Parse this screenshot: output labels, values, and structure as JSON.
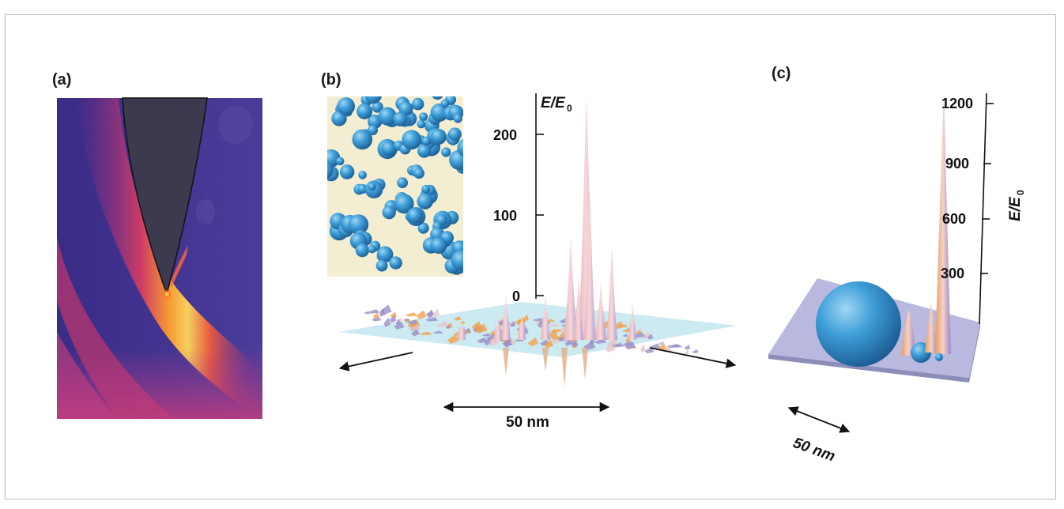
{
  "panels": {
    "a": {
      "label": "(a)"
    },
    "b": {
      "label": "(b)",
      "y_axis_title": "E/E",
      "y_axis_subscript": "0",
      "ticks": [
        "200",
        "100",
        "0"
      ],
      "scale_label": "50 nm"
    },
    "c": {
      "label": "(c)",
      "y_axis_title": "E/E",
      "y_axis_subscript": "0",
      "ticks": [
        "1200",
        "900",
        "600",
        "300"
      ],
      "scale_label": "50 nm"
    }
  },
  "colors": {
    "sphere_blue": "#3f9fd8",
    "peak_pink": "#f0c0c4",
    "plane_cyan": "#bfe6f2",
    "heat_purple": "#3c2f8e",
    "heat_yellow": "#ffd447"
  },
  "icons": [
    "afm-tip",
    "nanoparticle-cluster",
    "double-arrow"
  ]
}
